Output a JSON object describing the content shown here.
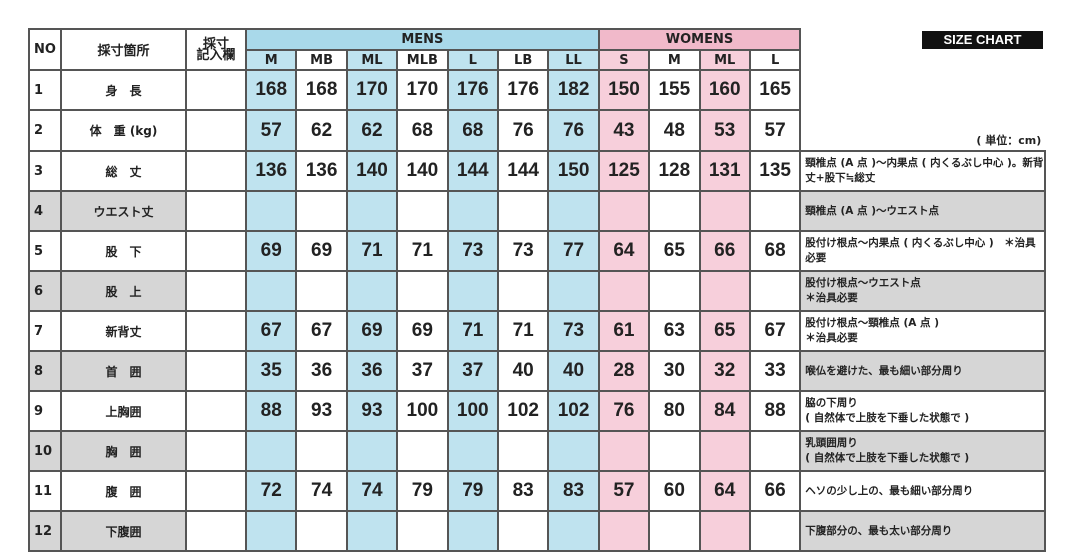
{
  "badge": "SIZE CHART",
  "unit": "( 単位：cm)",
  "headers": {
    "no": "NO",
    "part": "採寸箇所",
    "record": "採寸\n記入欄",
    "mens": "MENS",
    "womens": "WOMENS"
  },
  "mens_sizes": [
    "M",
    "MB",
    "ML",
    "MLB",
    "L",
    "LB",
    "LL"
  ],
  "womens_sizes": [
    "S",
    "M",
    "ML",
    "L"
  ],
  "colors": {
    "mens": "#bfe3ef",
    "womens": "#f7cfdb",
    "gray": "#d6d6d6"
  },
  "rows": [
    {
      "no": "1",
      "label": "身　長",
      "values": [
        "168",
        "168",
        "170",
        "170",
        "176",
        "176",
        "182",
        "150",
        "155",
        "160",
        "165"
      ],
      "note": ""
    },
    {
      "no": "2",
      "label": "体　重 (kg)",
      "values": [
        "57",
        "62",
        "62",
        "68",
        "68",
        "76",
        "76",
        "43",
        "48",
        "53",
        "57"
      ],
      "note": ""
    },
    {
      "no": "3",
      "label": "総　丈",
      "values": [
        "136",
        "136",
        "140",
        "140",
        "144",
        "144",
        "150",
        "125",
        "128",
        "131",
        "135"
      ],
      "note": "頸椎点 (A 点 )〜内果点 ( 内くるぶし中心 )。新背丈+股下≒総丈"
    },
    {
      "no": "4",
      "label": "ウエスト丈",
      "values": [
        "",
        "",
        "",
        "",
        "",
        "",
        "",
        "",
        "",
        "",
        ""
      ],
      "note": "頸椎点 (A 点 )〜ウエスト点"
    },
    {
      "no": "5",
      "label": "股　下",
      "values": [
        "69",
        "69",
        "71",
        "71",
        "73",
        "73",
        "77",
        "64",
        "65",
        "66",
        "68"
      ],
      "note": "股付け根点〜内果点 ( 内くるぶし中心 )　＊治具必要"
    },
    {
      "no": "6",
      "label": "股　上",
      "values": [
        "",
        "",
        "",
        "",
        "",
        "",
        "",
        "",
        "",
        "",
        ""
      ],
      "note": "股付け根点〜ウエスト点\n＊治具必要"
    },
    {
      "no": "7",
      "label": "新背丈",
      "values": [
        "67",
        "67",
        "69",
        "69",
        "71",
        "71",
        "73",
        "61",
        "63",
        "65",
        "67"
      ],
      "note": "股付け根点〜頸椎点 (A 点 )\n＊治具必要"
    },
    {
      "no": "8",
      "label": "首　囲",
      "values": [
        "35",
        "36",
        "36",
        "37",
        "37",
        "40",
        "40",
        "28",
        "30",
        "32",
        "33"
      ],
      "note": "喉仏を避けた、最も細い部分周り"
    },
    {
      "no": "9",
      "label": "上胸囲",
      "values": [
        "88",
        "93",
        "93",
        "100",
        "100",
        "102",
        "102",
        "76",
        "80",
        "84",
        "88"
      ],
      "note": "脇の下周り\n( 自然体で上肢を下垂した状態で )"
    },
    {
      "no": "10",
      "label": "胸　囲",
      "values": [
        "",
        "",
        "",
        "",
        "",
        "",
        "",
        "",
        "",
        "",
        ""
      ],
      "note": "乳頭囲周り\n( 自然体で上肢を下垂した状態で )"
    },
    {
      "no": "11",
      "label": "腹　囲",
      "values": [
        "72",
        "74",
        "74",
        "79",
        "79",
        "83",
        "83",
        "57",
        "60",
        "64",
        "66"
      ],
      "note": "ヘソの少し上の、最も細い部分周り"
    },
    {
      "no": "12",
      "label": "下腹囲",
      "values": [
        "",
        "",
        "",
        "",
        "",
        "",
        "",
        "",
        "",
        "",
        ""
      ],
      "note": "下腹部分の、最も太い部分周り"
    }
  ]
}
